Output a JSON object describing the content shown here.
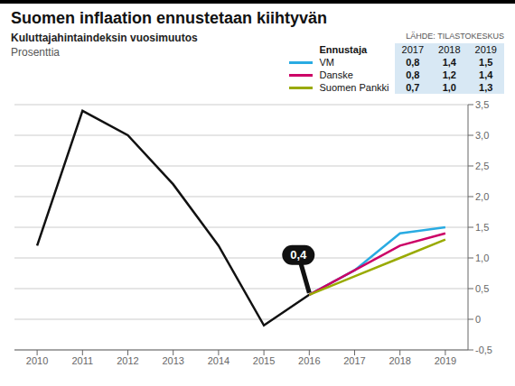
{
  "chart_data": {
    "type": "line",
    "title": "Suomen inflaation ennustetaan kiihtyvän",
    "subtitle": "Kuluttajahintaindeksin vuosimuutos",
    "ylabel": "Prosenttia",
    "source": "LÄHDE: TILASTOKESKUS",
    "x": [
      2010,
      2011,
      2012,
      2013,
      2014,
      2015,
      2016,
      2017,
      2018,
      2019
    ],
    "series": [
      {
        "color": "#111111",
        "values": [
          1.2,
          3.4,
          3.0,
          2.2,
          1.2,
          -0.1,
          0.4,
          null,
          null,
          null
        ]
      },
      {
        "name": "VM",
        "color": "#29abe2",
        "values": [
          null,
          null,
          null,
          null,
          null,
          null,
          0.4,
          0.8,
          1.4,
          1.5
        ],
        "value_labels": [
          null,
          null,
          null,
          null,
          null,
          null,
          null,
          "0,8",
          "1,4",
          "1,5"
        ]
      },
      {
        "name": "Danske",
        "color": "#cc0066",
        "values": [
          null,
          null,
          null,
          null,
          null,
          null,
          0.4,
          0.8,
          1.2,
          1.4
        ],
        "value_labels": [
          null,
          null,
          null,
          null,
          null,
          null,
          null,
          "0,8",
          "1,2",
          "1,4"
        ]
      },
      {
        "name": "Suomen Pankki",
        "color": "#99aa00",
        "values": [
          null,
          null,
          null,
          null,
          null,
          null,
          0.4,
          0.7,
          1.0,
          1.3
        ],
        "value_labels": [
          null,
          null,
          null,
          null,
          null,
          null,
          null,
          "0,7",
          "1,0",
          "1,3"
        ]
      }
    ],
    "xlim": [
      2009.5,
      2019.5
    ],
    "xticks": [
      2010,
      2011,
      2012,
      2013,
      2014,
      2015,
      2016,
      2017,
      2018,
      2019
    ],
    "ylim": [
      -0.5,
      3.5
    ],
    "yticks": [
      {
        "value": -0.5,
        "label": "-0,5"
      },
      0,
      {
        "value": 0.5,
        "label": "0,5"
      },
      {
        "value": 1.0,
        "label": "1,0"
      },
      {
        "value": 1.5,
        "label": "1,5"
      },
      {
        "value": 2.0,
        "label": "2,0"
      },
      {
        "value": 2.5,
        "label": "2,5"
      },
      {
        "value": 3.0,
        "label": "3,0"
      },
      {
        "value": 3.5,
        "label": "3,5"
      }
    ],
    "grid": "y",
    "legend": "top",
    "legend_title": "Ennustaja",
    "legend_columns": [
      "2017",
      "2018",
      "2019"
    ],
    "annotations": [
      {
        "text": "0,4",
        "x": 2016,
        "y": 0.4
      }
    ]
  }
}
